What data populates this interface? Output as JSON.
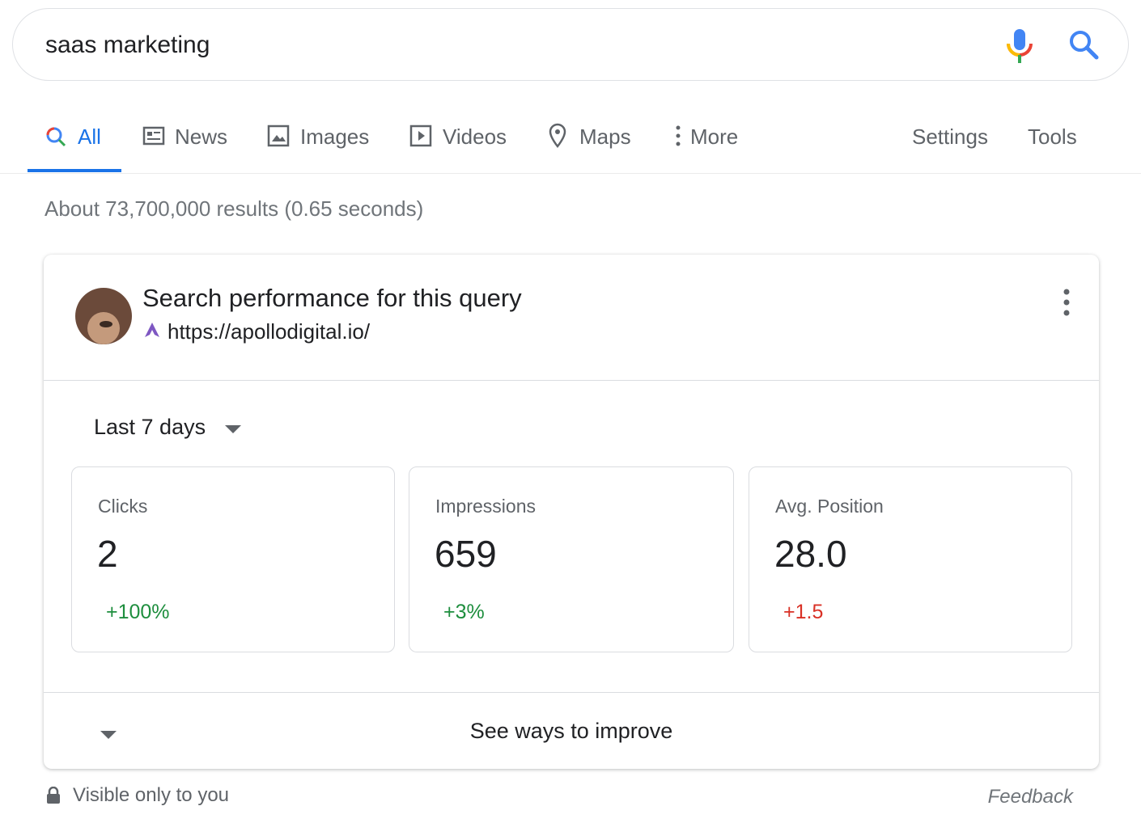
{
  "search": {
    "query": "saas marketing"
  },
  "tabs": [
    "All",
    "News",
    "Images",
    "Videos",
    "Maps",
    "More"
  ],
  "settings": "Settings",
  "tools": "Tools",
  "result_stats": "About 73,700,000 results (0.65 seconds)",
  "card": {
    "title": "Search performance for this query",
    "url": "https://apollodigital.io/",
    "period": "Last 7 days",
    "metrics": [
      {
        "label": "Clicks",
        "value": "2",
        "change": "+100%"
      },
      {
        "label": "Impressions",
        "value": "659",
        "change": "+3%"
      },
      {
        "label": "Avg. Position",
        "value": "28.0",
        "change": "+1.5"
      }
    ],
    "improve": "See ways to improve"
  },
  "footer": {
    "visibility": "Visible only to you",
    "feedback": "Feedback"
  }
}
